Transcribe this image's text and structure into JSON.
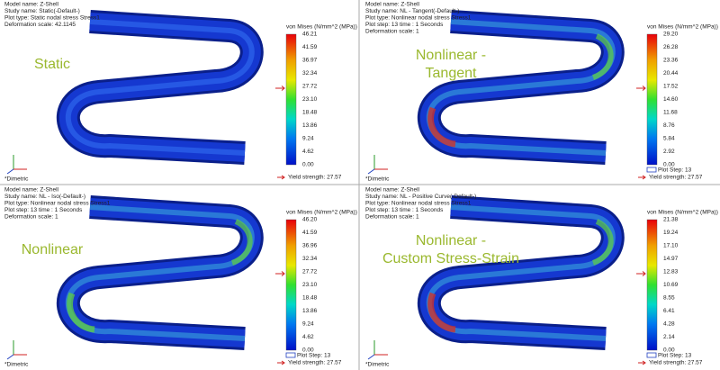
{
  "panels": [
    {
      "header": [
        "Model name: Z-Shell",
        "Study name: Static(-Default-)",
        "Plot type: Static nodal stress Stress1",
        "Deformation scale: 42.1145"
      ],
      "label": [
        "Static"
      ],
      "legend_title": "von Mises (N/mm^2 (MPa))",
      "ticks": [
        "46.21",
        "41.59",
        "36.97",
        "32.34",
        "27.72",
        "23.10",
        "18.48",
        "13.86",
        "9.24",
        "4.62",
        "0.00"
      ],
      "yield": "Yield strength: 27.57",
      "view": "*Dimetric"
    },
    {
      "header": [
        "Model name: Z-Shell",
        "Study name: NL - Tangent(-Default-)",
        "Plot type: Nonlinear nodal stress Stress1",
        "Plot step: 13   time : 1 Seconds",
        "Deformation scale: 1"
      ],
      "label": [
        "Nonlinear -",
        "Tangent"
      ],
      "legend_title": "von Mises (N/mm^2 (MPa))",
      "ticks": [
        "29.20",
        "26.28",
        "23.36",
        "20.44",
        "17.52",
        "14.60",
        "11.68",
        "8.76",
        "5.84",
        "2.92",
        "0.00"
      ],
      "plot_step": "Plot Step: 13",
      "yield": "Yield strength: 27.57",
      "view": "*Dimetric"
    },
    {
      "header": [
        "Model name: Z-Shell",
        "Study name: NL - Iso(-Default-)",
        "Plot type: Nonlinear nodal stress Stress1",
        "Plot step: 13   time : 1 Seconds",
        "Deformation scale: 1"
      ],
      "label": [
        "Nonlinear"
      ],
      "legend_title": "von Mises (N/mm^2 (MPa))",
      "ticks": [
        "46.20",
        "41.59",
        "36.96",
        "32.34",
        "27.72",
        "23.10",
        "18.48",
        "13.86",
        "9.24",
        "4.62",
        "0.00"
      ],
      "plot_step": "Plot Step: 13",
      "yield": "Yield strength: 27.57",
      "view": "*Dimetric"
    },
    {
      "header": [
        "Model name: Z-Shell",
        "Study name: NL - Positive Curve(-Default-)",
        "Plot type: Nonlinear nodal stress Stress1",
        "Plot step: 13   time : 1 Seconds",
        "Deformation scale: 1"
      ],
      "label": [
        "Nonlinear -",
        "Custom Stress-Strain"
      ],
      "legend_title": "von Mises (N/mm^2 (MPa))",
      "ticks": [
        "21.38",
        "19.24",
        "17.10",
        "14.97",
        "12.83",
        "10.69",
        "8.55",
        "6.41",
        "4.28",
        "2.14",
        "0.00"
      ],
      "plot_step": "Plot Step: 13",
      "yield": "Yield strength: 27.57",
      "view": "*Dimetric"
    }
  ]
}
